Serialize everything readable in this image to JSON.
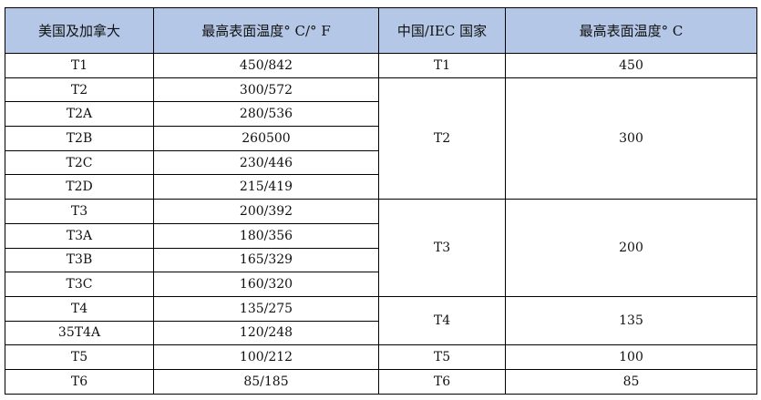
{
  "colors": {
    "header_bg": "#b4c7e7"
  },
  "headers": [
    "美国及加拿大",
    "最高表面温度° C/° F",
    "中国/IEC 国家",
    "最高表面温度° C"
  ],
  "us_rows": [
    [
      "T1",
      "450/842"
    ],
    [
      "T2",
      "300/572"
    ],
    [
      "T2A",
      "280/536"
    ],
    [
      "T2B",
      "260500"
    ],
    [
      "T2C",
      "230/446"
    ],
    [
      "T2D",
      "215/419"
    ],
    [
      "T3",
      "200/392"
    ],
    [
      "T3A",
      "180/356"
    ],
    [
      "T3B",
      "165/329"
    ],
    [
      "T3C",
      "160/320"
    ],
    [
      "T4",
      "135/275"
    ],
    [
      "35T4A",
      "120/248"
    ],
    [
      "T5",
      "100/212"
    ],
    [
      "T6",
      "85/185"
    ]
  ],
  "iec_groups": [
    [
      "T1",
      "450"
    ],
    [
      "T2",
      "300"
    ],
    [
      "T3",
      "200"
    ],
    [
      "T4",
      "135"
    ],
    [
      "T5",
      "100"
    ],
    [
      "T6",
      "85"
    ]
  ]
}
